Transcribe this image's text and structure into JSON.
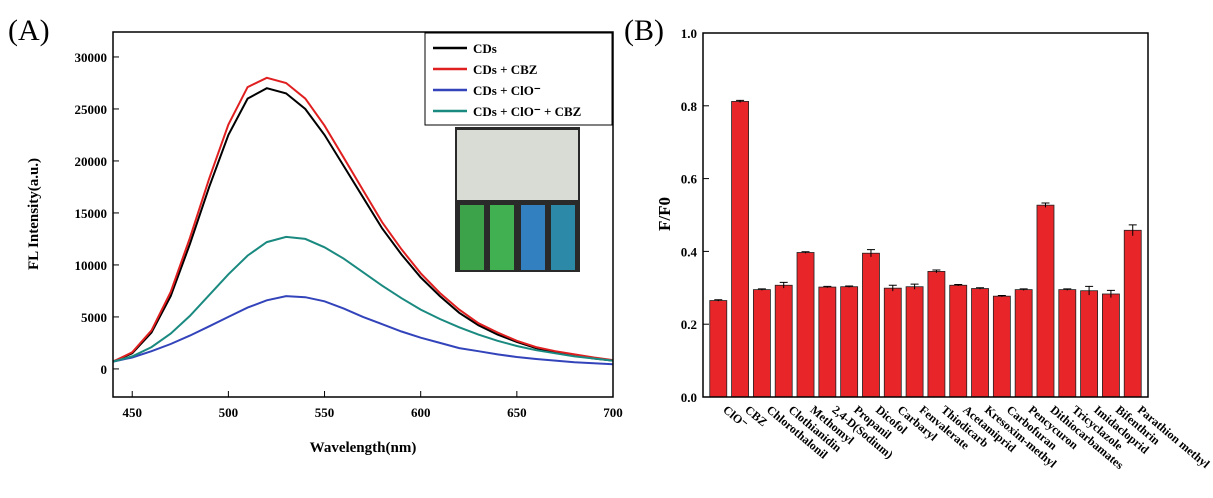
{
  "chart_data": [
    {
      "type": "line",
      "title": "(A)",
      "x_label": "Wavelength(nm)",
      "y_label": "FL Intensity(a.u.)",
      "x": [
        440,
        450,
        460,
        470,
        480,
        490,
        500,
        510,
        520,
        530,
        540,
        550,
        560,
        570,
        580,
        590,
        600,
        610,
        620,
        630,
        640,
        650,
        660,
        670,
        680,
        690,
        700
      ],
      "xlim": [
        440,
        700
      ],
      "xticks": [
        450,
        500,
        550,
        600,
        650,
        700
      ],
      "ylim": [
        -2700,
        32400
      ],
      "yticks": [
        0,
        5000,
        10000,
        15000,
        20000,
        25000,
        30000
      ],
      "legend": "upper right",
      "series": [
        {
          "name": "CDs",
          "color": "#000000",
          "values": [
            700,
            1500,
            3500,
            7000,
            12000,
            17500,
            22500,
            26000,
            27000,
            26500,
            25000,
            22500,
            19500,
            16500,
            13500,
            11000,
            8800,
            7000,
            5400,
            4200,
            3300,
            2600,
            2000,
            1600,
            1300,
            1000,
            800
          ]
        },
        {
          "name": "CDs + CBZ",
          "color": "#e02020",
          "values": [
            700,
            1600,
            3700,
            7400,
            12600,
            18300,
            23500,
            27100,
            28000,
            27500,
            26000,
            23400,
            20300,
            17200,
            14100,
            11500,
            9200,
            7300,
            5700,
            4400,
            3500,
            2700,
            2100,
            1700,
            1400,
            1100,
            850
          ]
        },
        {
          "name": "CDs + ClO⁻",
          "color": "#3344bb",
          "values": [
            700,
            1100,
            1700,
            2400,
            3200,
            4100,
            5000,
            5900,
            6600,
            7000,
            6900,
            6500,
            5800,
            5000,
            4300,
            3600,
            3000,
            2500,
            2000,
            1700,
            1400,
            1150,
            950,
            800,
            650,
            550,
            450
          ]
        },
        {
          "name": "CDs + ClO⁻ + CBZ",
          "color": "#1a8a80",
          "values": [
            700,
            1200,
            2100,
            3400,
            5100,
            7100,
            9100,
            10900,
            12200,
            12700,
            12500,
            11700,
            10600,
            9300,
            8000,
            6800,
            5700,
            4800,
            4000,
            3300,
            2700,
            2200,
            1800,
            1500,
            1200,
            1000,
            800
          ]
        }
      ]
    },
    {
      "type": "bar",
      "title": "(B)",
      "y_label": "F/F0",
      "categories": [
        "ClO⁻",
        "CBZ",
        "Chlorothalonil",
        "Clothianidin",
        "Methomyl",
        "2,4-D(Sodium)",
        "Propanil",
        "Dicofol",
        "Carbaryl",
        "Fenvalerate",
        "Thiodicarb",
        "Acetamiprid",
        "Kresoxim-methyl",
        "Carbofuran",
        "Pencycuron",
        "Dithiocarbamates",
        "Tricyclazole",
        "Imidacloprid",
        "Bifenthrin",
        "Parathion methyl"
      ],
      "values": [
        0.265,
        0.812,
        0.295,
        0.307,
        0.397,
        0.302,
        0.303,
        0.395,
        0.299,
        0.303,
        0.345,
        0.307,
        0.298,
        0.277,
        0.295,
        0.527,
        0.295,
        0.292,
        0.283,
        0.458
      ],
      "errors": [
        0.002,
        0.003,
        0.002,
        0.008,
        0.002,
        0.002,
        0.002,
        0.01,
        0.008,
        0.007,
        0.004,
        0.002,
        0.002,
        0.002,
        0.002,
        0.006,
        0.002,
        0.012,
        0.01,
        0.015
      ],
      "color": "#e8262a",
      "ylim": [
        0,
        1.0
      ],
      "yticks": [
        {
          "value": 0,
          "label": "0.0"
        },
        0.2,
        0.4,
        0.6,
        0.8,
        {
          "value": 1.0,
          "label": "1.0"
        }
      ]
    }
  ]
}
